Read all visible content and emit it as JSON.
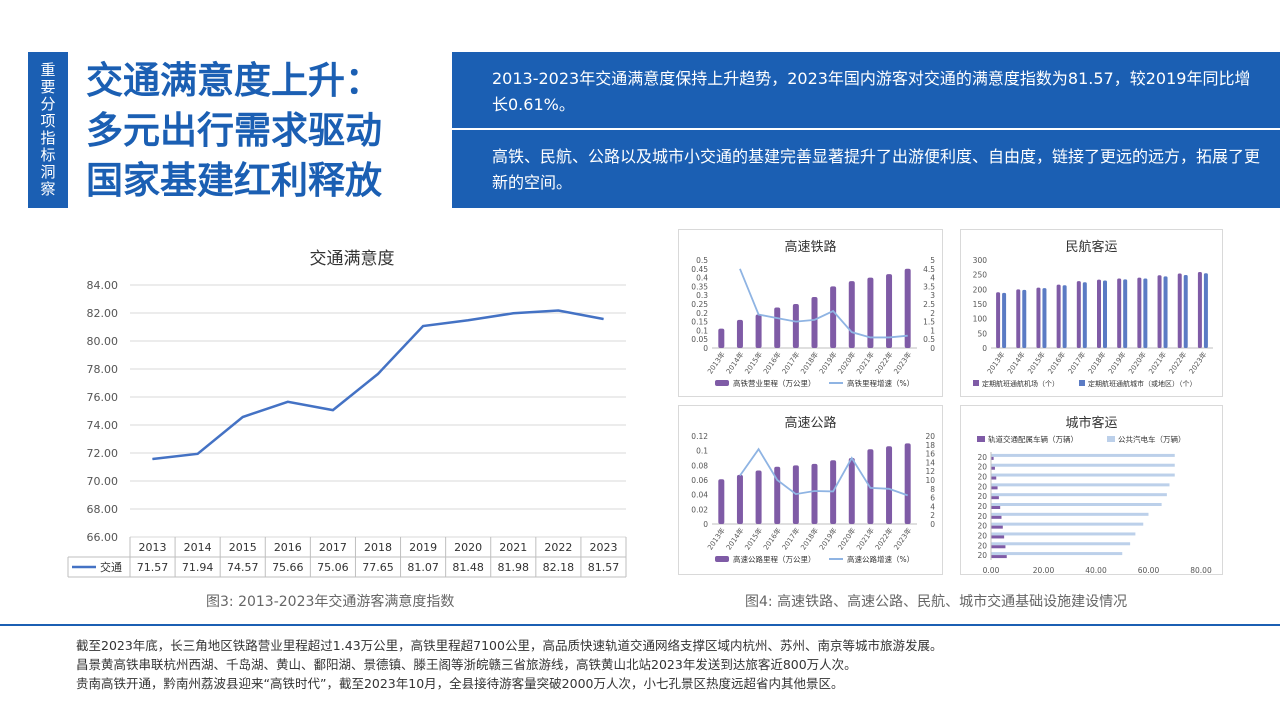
{
  "side_tag": "重要分项指标洞察",
  "title_lines": [
    "交通满意度上升：",
    "多元出行需求驱动",
    "国家基建红利释放"
  ],
  "summary": {
    "p1": "2013-2023年交通满意度保持上升趋势，2023年国内游客对交通的满意度指数为81.57，较2019年同比增长0.61%。",
    "p2": "高铁、民航、公路以及城市小交通的基建完善显著提升了出游便利度、自由度，链接了更远的远方，拓展了更新的空间。"
  },
  "captions": {
    "left": "图3: 2013-2023年交通游客满意度指数",
    "right": "图4: 高速铁路、高速公路、民航、城市交通基础设施建设情况"
  },
  "notes": [
    "截至2023年底，长三角地区铁路营业里程超过1.43万公里，高铁里程超7100公里，高品质快速轨道交通网络支撑区域内杭州、苏州、南京等城市旅游发展。",
    "昌景黄高铁串联杭州西湖、千岛湖、黄山、鄱阳湖、景德镇、滕王阁等浙皖赣三省旅游线，高铁黄山北站2023年发送到达旅客近800万人次。",
    "贵南高铁开通，黔南州荔波县迎来“高铁时代”，截至2023年10月，全县接待游客量突破2000万人次，小七孔景区热度远超省内其他景区。"
  ],
  "colors": {
    "brand": "#1b5fb3",
    "line": "#4472c4",
    "bar_purple": "#7f5ba6",
    "bar_blue": "#5b7bc4",
    "light_line": "#8fb4e3",
    "hbar_light": "#bcd0ea"
  },
  "chart_data": [
    {
      "type": "line",
      "title": "交通满意度",
      "categories": [
        "2013",
        "2014",
        "2015",
        "2016",
        "2017",
        "2018",
        "2019",
        "2020",
        "2021",
        "2022",
        "2023"
      ],
      "series": [
        {
          "name": "交通",
          "values": [
            71.57,
            71.94,
            74.57,
            75.66,
            75.06,
            77.65,
            81.07,
            81.48,
            81.98,
            82.18,
            81.57
          ]
        }
      ],
      "y_ticks": [
        "84.00",
        "82.00",
        "80.00",
        "78.00",
        "76.00",
        "74.00",
        "72.00",
        "70.00",
        "68.00",
        "66.00"
      ],
      "ylim": [
        66,
        84
      ],
      "table_labels": [
        "71.57",
        "71.94",
        "74.57",
        "75.66",
        "75.06",
        "77.65",
        "81.07",
        "81.48",
        "81.98",
        "82.18",
        "81.57"
      ],
      "grid": true
    },
    {
      "type": "bar",
      "title": "高速铁路",
      "categories": [
        "2013年",
        "2014年",
        "2015年",
        "2016年",
        "2017年",
        "2018年",
        "2019年",
        "2020年",
        "2021年",
        "2022年",
        "2023年"
      ],
      "series": [
        {
          "name": "高铁营业里程（万公里）",
          "kind": "bar",
          "axis": "left",
          "values": [
            0.11,
            0.16,
            0.19,
            0.23,
            0.25,
            0.29,
            0.35,
            0.38,
            0.4,
            0.42,
            0.45
          ]
        },
        {
          "name": "高铁里程增速（%）",
          "kind": "line",
          "axis": "right",
          "values": [
            null,
            4.5,
            1.9,
            1.7,
            1.5,
            1.6,
            2.1,
            0.9,
            0.6,
            0.6,
            0.7
          ]
        }
      ],
      "y_left_ticks": [
        "0.5",
        "0.45",
        "0.4",
        "0.35",
        "0.3",
        "0.25",
        "0.2",
        "0.15",
        "0.1",
        "0.05",
        "0"
      ],
      "y_right_ticks": [
        "5",
        "4.5",
        "4",
        "3.5",
        "3",
        "2.5",
        "2",
        "1.5",
        "1",
        "0.5",
        "0"
      ],
      "ylim_left": [
        0,
        0.5
      ],
      "ylim_right": [
        0,
        5
      ]
    },
    {
      "type": "bar",
      "title": "民航客运",
      "categories": [
        "2013年",
        "2014年",
        "2015年",
        "2016年",
        "2017年",
        "2018年",
        "2019年",
        "2020年",
        "2021年",
        "2022年",
        "2023年"
      ],
      "series": [
        {
          "name": "定期航班通航机场（个）",
          "values": [
            190,
            200,
            206,
            216,
            228,
            233,
            237,
            240,
            248,
            254,
            259
          ]
        },
        {
          "name": "定期航班通航城市（或地区）（个）",
          "values": [
            188,
            198,
            204,
            214,
            224,
            230,
            234,
            237,
            244,
            249,
            255
          ]
        }
      ],
      "y_ticks": [
        "300",
        "250",
        "200",
        "150",
        "100",
        "50",
        "0"
      ],
      "ylim": [
        0,
        300
      ]
    },
    {
      "type": "bar",
      "title": "高速公路",
      "categories": [
        "2013年",
        "2014年",
        "2015年",
        "2016年",
        "2017年",
        "2018年",
        "2019年",
        "2020年",
        "2021年",
        "2022年",
        "2023年"
      ],
      "series": [
        {
          "name": "高速公路里程（万公里）",
          "kind": "bar",
          "axis": "left",
          "values": [
            0.061,
            0.067,
            0.073,
            0.078,
            0.08,
            0.082,
            0.087,
            0.09,
            0.102,
            0.106,
            0.11
          ]
        },
        {
          "name": "高速公路增速（%）",
          "kind": "line",
          "axis": "right",
          "values": [
            null,
            11,
            17,
            10,
            6.8,
            7.5,
            7.4,
            15,
            8.2,
            8,
            6.5
          ]
        }
      ],
      "y_left_ticks": [
        "0.12",
        "0.1",
        "0.08",
        "0.06",
        "0.04",
        "0.02",
        "0"
      ],
      "y_right_ticks": [
        "20",
        "18",
        "16",
        "14",
        "12",
        "10",
        "8",
        "6",
        "4",
        "2",
        "0"
      ],
      "ylim_left": [
        0,
        0.12
      ],
      "ylim_right": [
        0,
        20
      ]
    },
    {
      "type": "bar",
      "title": "城市客运",
      "orientation": "horizontal",
      "categories": [
        "20",
        "20",
        "20",
        "20",
        "20",
        "20",
        "20",
        "20",
        "20",
        "20",
        "20"
      ],
      "series": [
        {
          "name": "轨道交通配属车辆（万辆）",
          "values": [
            1.0,
            1.5,
            2.0,
            2.5,
            3.0,
            3.5,
            4.0,
            4.5,
            5.0,
            5.5,
            6.0
          ]
        },
        {
          "name": "公共汽电车（万辆）",
          "values": [
            70,
            70,
            70,
            68,
            67,
            65,
            60,
            58,
            55,
            53,
            50
          ]
        }
      ],
      "x_ticks": [
        "0.00",
        "20.00",
        "40.00",
        "60.00",
        "80.00"
      ],
      "xlim": [
        0,
        80
      ]
    }
  ]
}
